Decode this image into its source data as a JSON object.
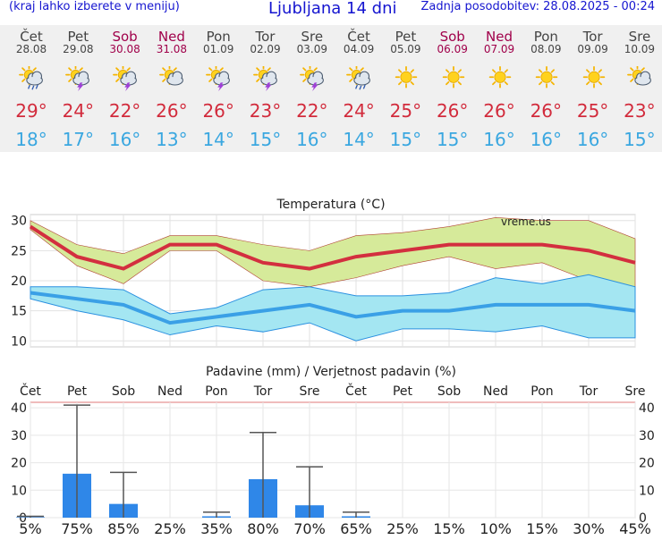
{
  "header": {
    "left_note": "(kraj lahko izberete v meniju)",
    "title": "Ljubljana 14 dni",
    "updated": "Zadnja posodobitev: 28.08.2025 - 00:24"
  },
  "forecast": [
    {
      "day": "Čet",
      "date": "28.08",
      "weekend": false,
      "icon": "sun-cloud-rain-icon",
      "tmax": "29°",
      "tmin": "18°"
    },
    {
      "day": "Pet",
      "date": "29.08",
      "weekend": false,
      "icon": "sun-cloud-thunder-icon",
      "tmax": "24°",
      "tmin": "17°"
    },
    {
      "day": "Sob",
      "date": "30.08",
      "weekend": true,
      "icon": "sun-cloud-thunder-icon",
      "tmax": "22°",
      "tmin": "16°"
    },
    {
      "day": "Ned",
      "date": "31.08",
      "weekend": true,
      "icon": "sun-cloud-icon",
      "tmax": "26°",
      "tmin": "13°"
    },
    {
      "day": "Pon",
      "date": "01.09",
      "weekend": false,
      "icon": "sun-cloud-thunder-icon",
      "tmax": "26°",
      "tmin": "14°"
    },
    {
      "day": "Tor",
      "date": "02.09",
      "weekend": false,
      "icon": "sun-cloud-thunder-icon",
      "tmax": "23°",
      "tmin": "15°"
    },
    {
      "day": "Sre",
      "date": "03.09",
      "weekend": false,
      "icon": "sun-cloud-thunder-icon",
      "tmax": "22°",
      "tmin": "16°"
    },
    {
      "day": "Čet",
      "date": "04.09",
      "weekend": false,
      "icon": "sun-cloud-rain-icon",
      "tmax": "24°",
      "tmin": "14°"
    },
    {
      "day": "Pet",
      "date": "05.09",
      "weekend": false,
      "icon": "sun-icon",
      "tmax": "25°",
      "tmin": "15°"
    },
    {
      "day": "Sob",
      "date": "06.09",
      "weekend": true,
      "icon": "sun-icon",
      "tmax": "26°",
      "tmin": "15°"
    },
    {
      "day": "Ned",
      "date": "07.09",
      "weekend": true,
      "icon": "sun-icon",
      "tmax": "26°",
      "tmin": "16°"
    },
    {
      "day": "Pon",
      "date": "08.09",
      "weekend": false,
      "icon": "sun-icon",
      "tmax": "26°",
      "tmin": "16°"
    },
    {
      "day": "Tor",
      "date": "09.09",
      "weekend": false,
      "icon": "sun-icon",
      "tmax": "25°",
      "tmin": "16°"
    },
    {
      "day": "Sre",
      "date": "10.09",
      "weekend": false,
      "icon": "sun-cloud-icon",
      "tmax": "23°",
      "tmin": "15°"
    }
  ],
  "chart_data": [
    {
      "type": "line",
      "title": "Temperatura (°C)",
      "watermark": "vreme.us",
      "ylim": [
        9,
        31
      ],
      "yticks": [
        10,
        15,
        20,
        25,
        30
      ],
      "grid": true,
      "series": [
        {
          "values": [
            29,
            24,
            22,
            26,
            26,
            23,
            22,
            24,
            25,
            26,
            26,
            26,
            25,
            23
          ]
        },
        {
          "values": [
            18,
            17,
            16,
            13,
            14,
            15,
            16,
            14,
            15,
            15,
            16,
            16,
            16,
            15
          ]
        }
      ],
      "max_band_upper": [
        30,
        26,
        24.5,
        27.5,
        27.5,
        26,
        25,
        27.5,
        28,
        29,
        30.5,
        30,
        30,
        27
      ],
      "max_band_lower": [
        28.5,
        22.5,
        19.5,
        25,
        25,
        20,
        19,
        20.5,
        22.5,
        24,
        22,
        23,
        20,
        19
      ],
      "min_band_upper": [
        19,
        19,
        18.5,
        14.5,
        15.5,
        18.5,
        19,
        17.5,
        17.5,
        18,
        20.5,
        19.5,
        21,
        19
      ],
      "min_band_lower": [
        17,
        15,
        13.5,
        11,
        12.5,
        11.5,
        13,
        10,
        12,
        12,
        11.5,
        12.5,
        10.5,
        10.5
      ],
      "colors": {
        "max": "#d32f3f",
        "max_band": "#d6ea9a",
        "min": "#3aa0e6",
        "min_band": "#a4e6f2"
      }
    },
    {
      "type": "bar",
      "title": "Padavine (mm) / Verjetnost padavin (%)",
      "categories": [
        "Čet",
        "Pet",
        "Sob",
        "Ned",
        "Pon",
        "Tor",
        "Sre",
        "Čet",
        "Pet",
        "Sob",
        "Ned",
        "Pon",
        "Tor",
        "Sre"
      ],
      "weekend": [
        false,
        false,
        true,
        true,
        false,
        false,
        false,
        false,
        false,
        true,
        true,
        false,
        false,
        false
      ],
      "ylim": [
        0,
        42
      ],
      "yticks": [
        0,
        10,
        20,
        30,
        40
      ],
      "values": [
        0.2,
        16,
        5,
        0,
        0.5,
        14,
        4.5,
        0.5,
        0,
        0,
        0,
        0,
        0,
        0
      ],
      "range_max": [
        0.5,
        41,
        16.5,
        0,
        2,
        31,
        18.5,
        2,
        0,
        0,
        0,
        0,
        0,
        0
      ],
      "probability": [
        "5%",
        "75%",
        "85%",
        "25%",
        "35%",
        "80%",
        "70%",
        "65%",
        "25%",
        "15%",
        "10%",
        "15%",
        "30%",
        "45%"
      ],
      "probability_values": [
        5,
        75,
        85,
        25,
        35,
        80,
        70,
        65,
        25,
        15,
        10,
        15,
        30,
        45
      ],
      "colors": {
        "bar": "#2f87e8",
        "high_prob": "#0a1aa0",
        "low_prob": "#5ec8ec"
      }
    }
  ]
}
